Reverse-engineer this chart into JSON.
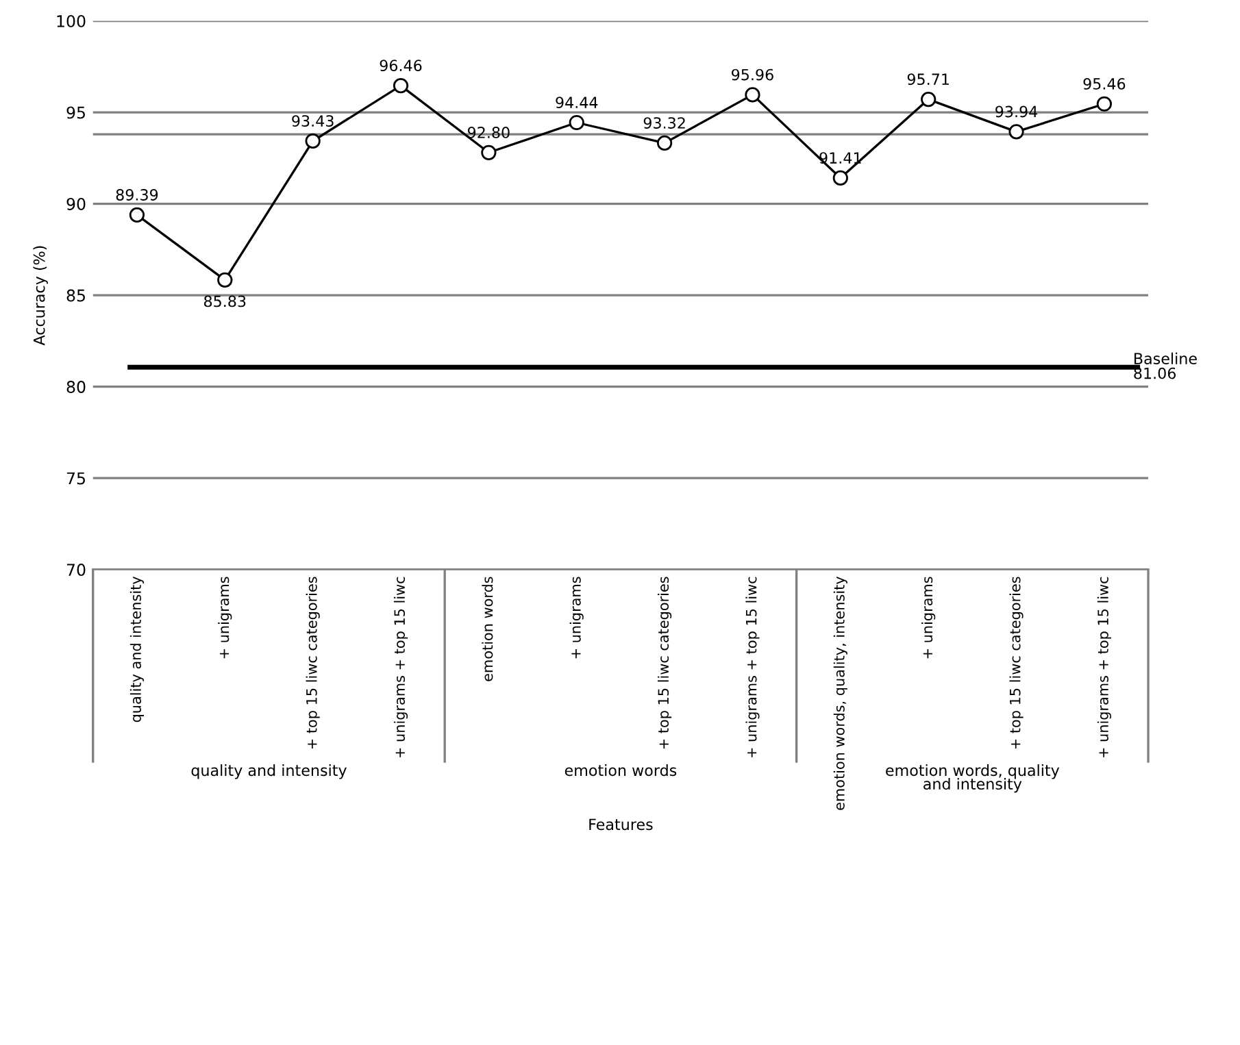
{
  "chart_data": {
    "type": "line",
    "xlabel": "Features",
    "ylabel": "Accuracy (%)",
    "categories": [
      "quality and intensity",
      "+ unigrams",
      "+ top 15 liwc categories",
      "+ unigrams + top 15 liwc",
      "emotion words",
      "+ unigrams",
      "+ top 15 liwc categories",
      "+ unigrams + top 15 liwc",
      "emotion words, quality, intensity",
      "+ unigrams",
      "+ top 15 liwc categories",
      "+ unigrams + top 15 liwc"
    ],
    "series": [
      {
        "color": "#000000",
        "values": [
          89.39,
          85.83,
          93.43,
          96.46,
          92.8,
          94.44,
          93.32,
          95.96,
          91.41,
          95.71,
          93.94,
          95.46
        ]
      }
    ],
    "value_labels": [
      "89.39",
      "85.83",
      "93.43",
      "96.46",
      "92.80",
      "94.44",
      "93.32",
      "95.96",
      "91.41",
      "95.71",
      "93.94",
      "95.46"
    ],
    "ylim": [
      70,
      100
    ],
    "yticks": [
      70,
      75,
      80,
      85,
      90,
      {
        "value": 93.8,
        "label": null
      },
      95,
      100
    ],
    "grid": "y",
    "marker": "circle",
    "line_style": "solid",
    "legend": false,
    "ref_lines": [
      {
        "axis": "y",
        "value": 81.06,
        "label": "Baseline\n81.06",
        "color": "#000000",
        "line_style": "solid"
      }
    ],
    "annotations": [
      "quality and intensity",
      "emotion words",
      "emotion words, quality\nand intensity"
    ]
  }
}
